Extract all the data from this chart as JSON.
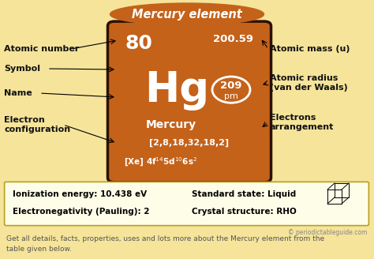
{
  "title": "Mercury element",
  "bg_color": "#F5E49A",
  "title_bg_color": "#C4621A",
  "title_text_color": "#FFFFFF",
  "element_box_color": "#C4621A",
  "element_box_border_color": "#2A1000",
  "atomic_number": "80",
  "atomic_mass": "200.59",
  "symbol": "Hg",
  "name": "Mercury",
  "electron_shells": "[2,8,18,32,18,2]",
  "atomic_radius": "209",
  "atomic_radius_unit": "pm",
  "info_box_border": "#C8A800",
  "info_box_bg": "#FFFFF5",
  "info_line1_left": "Ionization energy: 10.438 eV",
  "info_line2_left": "Electronegativity (Pauling): 2",
  "info_line1_right": "Standard state: Liquid",
  "info_line2_right": "Crystal structure: RHO",
  "copyright_text": "© periodictableguide.com",
  "footer_line1": "Get all details, facts, properties, uses and lots more about the Mercury element from the",
  "footer_line2": "table given below."
}
